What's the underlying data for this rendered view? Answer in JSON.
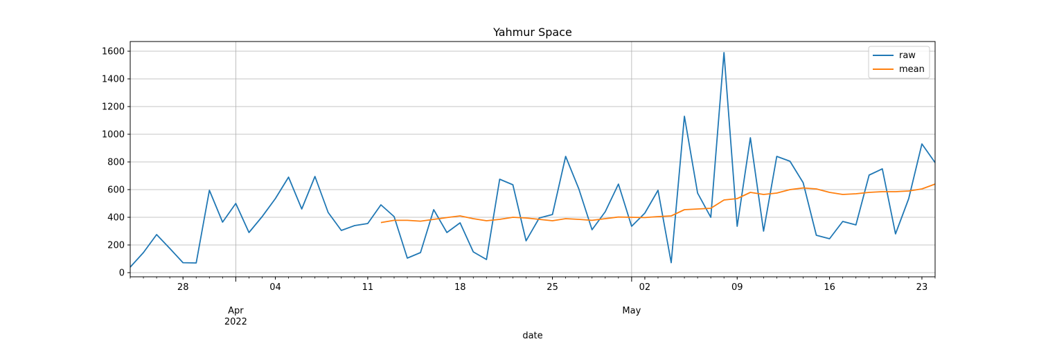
{
  "chart_data": {
    "type": "line",
    "title": "Yahmur Space",
    "xlabel": "date",
    "ylabel": "",
    "x_range": [
      "2022-03-24",
      "2022-05-24"
    ],
    "ylim": [
      -30,
      1670
    ],
    "yticks": [
      0,
      200,
      400,
      600,
      800,
      1000,
      1200,
      1400,
      1600
    ],
    "x_minor_ticks": [
      {
        "date": "2022-03-28",
        "label": "28"
      },
      {
        "date": "2022-04-04",
        "label": "04"
      },
      {
        "date": "2022-04-11",
        "label": "11"
      },
      {
        "date": "2022-04-18",
        "label": "18"
      },
      {
        "date": "2022-04-25",
        "label": "25"
      },
      {
        "date": "2022-05-02",
        "label": "02"
      },
      {
        "date": "2022-05-09",
        "label": "09"
      },
      {
        "date": "2022-05-16",
        "label": "16"
      },
      {
        "date": "2022-05-23",
        "label": "23"
      }
    ],
    "x_major_ticks": [
      {
        "date": "2022-04-01",
        "label": "Apr",
        "sublabel": "2022"
      },
      {
        "date": "2022-05-01",
        "label": "May",
        "sublabel": ""
      }
    ],
    "grid": true,
    "legend_position": "top-right",
    "series": [
      {
        "name": "raw",
        "color": "#1f77b4",
        "start_date": "2022-03-24",
        "values": [
          40,
          145,
          275,
          175,
          72,
          70,
          595,
          365,
          500,
          290,
          405,
          535,
          690,
          460,
          695,
          435,
          305,
          340,
          355,
          490,
          405,
          105,
          145,
          455,
          290,
          360,
          150,
          95,
          675,
          635,
          230,
          395,
          420,
          840,
          605,
          310,
          440,
          640,
          335,
          430,
          595,
          72,
          1130,
          575,
          400,
          1590,
          335,
          975,
          300,
          840,
          805,
          650,
          270,
          245,
          370,
          345,
          705,
          750,
          280,
          535,
          930,
          795
        ]
      },
      {
        "name": "mean",
        "color": "#ff7f0e",
        "start_date": "2022-04-12",
        "values": [
          362,
          378,
          378,
          372,
          385,
          398,
          410,
          390,
          375,
          385,
          400,
          395,
          385,
          375,
          390,
          385,
          378,
          390,
          402,
          400,
          398,
          405,
          410,
          455,
          460,
          465,
          525,
          535,
          580,
          565,
          575,
          600,
          612,
          605,
          580,
          565,
          570,
          580,
          585,
          585,
          590,
          605,
          640
        ]
      }
    ]
  }
}
